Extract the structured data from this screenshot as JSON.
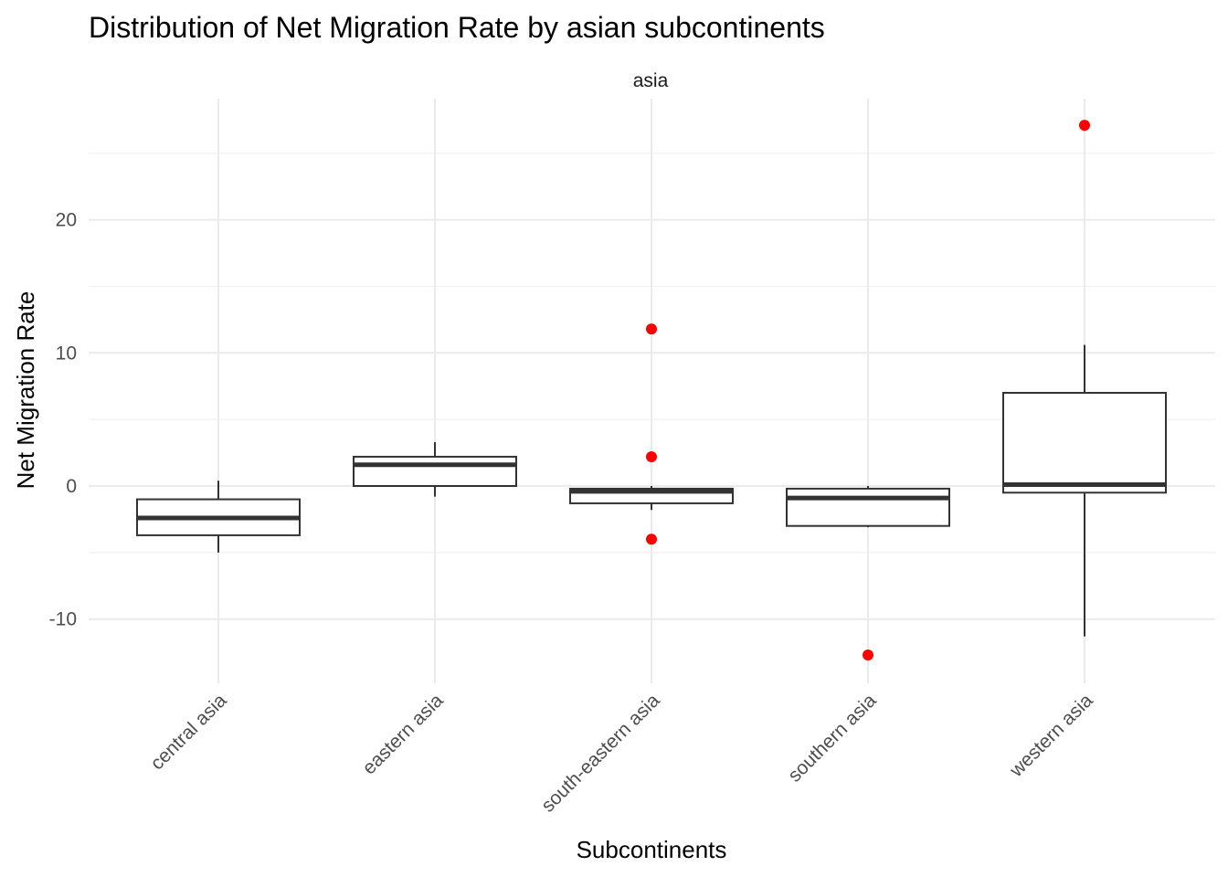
{
  "chart_data": {
    "type": "boxplot",
    "title": "Distribution of Net Migration Rate by asian subcontinents",
    "facet_label": "asia",
    "xlabel": "Subcontinents",
    "ylabel": "Net Migration Rate",
    "ylim": [
      -15.0,
      29.0
    ],
    "yticks": [
      -10,
      0,
      10,
      20
    ],
    "ytick_labels": [
      "-10",
      "0",
      "10",
      "20"
    ],
    "grid": true,
    "outlier_color": "#ff0000",
    "categories": [
      "central asia",
      "eastern asia",
      "south-eastern asia",
      "southern asia",
      "western asia"
    ],
    "boxes": [
      {
        "category": "central asia",
        "lower_whisker": -5.0,
        "q1": -3.7,
        "median": -2.4,
        "q3": -1.0,
        "upper_whisker": 0.4,
        "outliers": []
      },
      {
        "category": "eastern asia",
        "lower_whisker": -0.8,
        "q1": 0.0,
        "median": 1.6,
        "q3": 2.2,
        "upper_whisker": 3.3,
        "outliers": []
      },
      {
        "category": "south-eastern asia",
        "lower_whisker": -1.8,
        "q1": -1.3,
        "median": -0.4,
        "q3": -0.2,
        "upper_whisker": 0.0,
        "outliers": [
          11.8,
          2.2,
          -4.0
        ]
      },
      {
        "category": "southern asia",
        "lower_whisker": -3.1,
        "q1": -3.0,
        "median": -0.9,
        "q3": -0.2,
        "upper_whisker": 0.0,
        "outliers": [
          -12.7
        ]
      },
      {
        "category": "western asia",
        "lower_whisker": -11.3,
        "q1": -0.5,
        "median": 0.1,
        "q3": 7.0,
        "upper_whisker": 10.6,
        "outliers": [
          27.1
        ]
      }
    ]
  }
}
